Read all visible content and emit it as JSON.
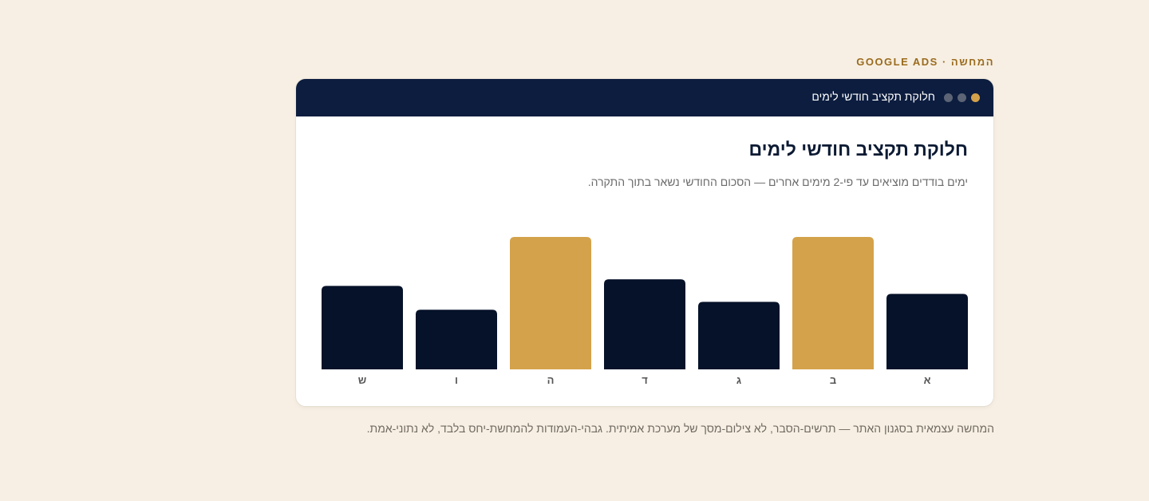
{
  "eyebrow": "המחשה · GOOGLE ADS",
  "window": {
    "title": "חלוקת תקציב חודשי לימים",
    "dot_colors": [
      "#d4a24a",
      "#5c6475",
      "#5c6475"
    ]
  },
  "footnote": "המחשה עצמאית בסגנון האתר — תרשים-הסבר, לא צילום-מסך של מערכת אמיתית. גבהי-העמודות להמחשת-יחס בלבד, לא נתוני-אמת.",
  "chart_data": {
    "type": "bar",
    "title": "חלוקת תקציב חודשי לימים",
    "subtitle": "ימים בודדים מוציאים עד פי-2 מימים אחרים — הסכום החודשי נשאר בתוך התקרה.",
    "direction": "rtl",
    "categories": [
      "א",
      "ב",
      "ג",
      "ד",
      "ה",
      "ו",
      "ש"
    ],
    "values": [
      0.57,
      1.0,
      0.51,
      0.68,
      1.0,
      0.45,
      0.63
    ],
    "highlight": [
      false,
      true,
      false,
      false,
      true,
      false,
      false
    ],
    "ylim": [
      0,
      1
    ],
    "grid": false,
    "colors": {
      "normal": "#061229",
      "highlight": "#d4a24a",
      "label": "#555555"
    }
  }
}
